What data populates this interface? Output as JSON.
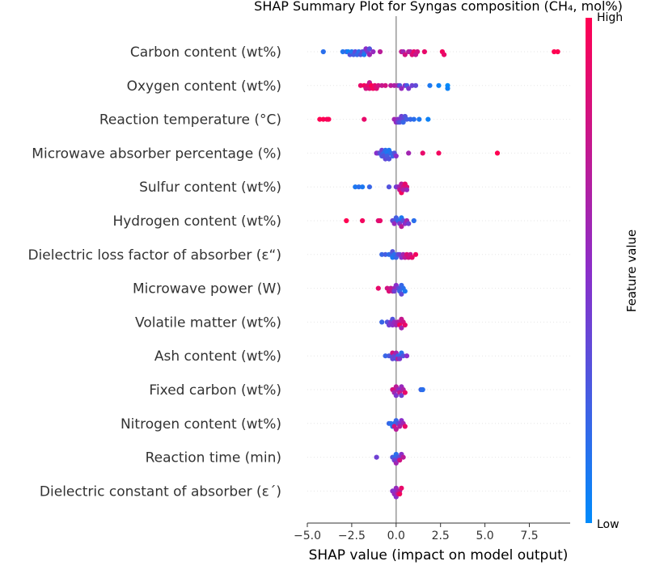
{
  "chart_data": {
    "type": "scatter",
    "title": "SHAP Summary Plot for Syngas composition (CH₄, mol%)",
    "xlabel": "SHAP value (impact on model output)",
    "xlim": [
      -5,
      9.8
    ],
    "xticks": [
      -5.0,
      -2.5,
      0.0,
      2.5,
      5.0,
      7.5
    ],
    "xtick_labels": [
      "−5.0",
      "−2.5",
      "0.0",
      "2.5",
      "5.0",
      "7.5"
    ],
    "colorbar": {
      "title": "Feature value",
      "high_label": "High",
      "low_label": "Low",
      "low_color": "#008bfb",
      "high_color": "#ff0052"
    },
    "features": [
      {
        "name": "Carbon content (wt%)",
        "points": [
          [
            -4.1,
            0.15
          ],
          [
            -3.0,
            0.12
          ],
          [
            -2.8,
            0.2
          ],
          [
            -2.6,
            0.3
          ],
          [
            -2.5,
            0.1
          ],
          [
            -2.4,
            0.25
          ],
          [
            -2.3,
            0.35
          ],
          [
            -2.2,
            0.2
          ],
          [
            -2.0,
            0.3
          ],
          [
            -1.9,
            0.4
          ],
          [
            -1.8,
            0.25
          ],
          [
            -1.7,
            0.5
          ],
          [
            -1.6,
            0.45
          ],
          [
            -1.5,
            0.6
          ],
          [
            -1.3,
            0.55
          ],
          [
            -0.9,
            0.7
          ],
          [
            -2.7,
            0.05
          ],
          [
            -2.1,
            0.15
          ],
          [
            -1.8,
            0.1
          ],
          [
            -1.5,
            0.3
          ],
          [
            0.3,
            0.75
          ],
          [
            0.5,
            0.8
          ],
          [
            0.7,
            0.7
          ],
          [
            0.9,
            0.85
          ],
          [
            1.0,
            0.9
          ],
          [
            1.1,
            0.75
          ],
          [
            1.2,
            0.8
          ],
          [
            1.6,
            0.9
          ],
          [
            2.6,
            0.95
          ],
          [
            2.7,
            0.9
          ],
          [
            8.9,
            1.0
          ],
          [
            9.1,
            1.0
          ],
          [
            0.4,
            0.6
          ],
          [
            0.8,
            0.65
          ]
        ]
      },
      {
        "name": "Oxygen content (wt%)",
        "points": [
          [
            -2.0,
            0.9
          ],
          [
            -1.8,
            0.95
          ],
          [
            -1.6,
            0.9
          ],
          [
            -1.5,
            0.85
          ],
          [
            -1.4,
            1.0
          ],
          [
            -1.3,
            0.95
          ],
          [
            -1.2,
            0.9
          ],
          [
            -1.1,
            0.85
          ],
          [
            -1.0,
            0.8
          ],
          [
            -0.8,
            0.75
          ],
          [
            -0.6,
            0.8
          ],
          [
            -0.3,
            0.7
          ],
          [
            -0.1,
            0.65
          ],
          [
            0.1,
            0.6
          ],
          [
            0.3,
            0.55
          ],
          [
            0.5,
            0.5
          ],
          [
            0.7,
            0.45
          ],
          [
            0.9,
            0.4
          ],
          [
            1.1,
            0.35
          ],
          [
            -1.5,
            0.75
          ],
          [
            -1.7,
            0.8
          ],
          [
            1.9,
            0.1
          ],
          [
            2.4,
            0.05
          ],
          [
            2.9,
            0.0
          ],
          [
            2.9,
            0.05
          ],
          [
            0.2,
            0.3
          ],
          [
            0.6,
            0.25
          ]
        ]
      },
      {
        "name": "Reaction temperature (°C)",
        "points": [
          [
            -4.3,
            1.0
          ],
          [
            -4.1,
            1.0
          ],
          [
            -3.9,
            0.95
          ],
          [
            -3.8,
            0.98
          ],
          [
            -1.8,
            0.9
          ],
          [
            -0.1,
            0.6
          ],
          [
            0.1,
            0.5
          ],
          [
            0.2,
            0.45
          ],
          [
            0.3,
            0.4
          ],
          [
            0.4,
            0.35
          ],
          [
            0.5,
            0.3
          ],
          [
            0.6,
            0.25
          ],
          [
            0.8,
            0.2
          ],
          [
            1.0,
            0.15
          ],
          [
            1.3,
            0.1
          ],
          [
            1.8,
            0.05
          ],
          [
            0.0,
            0.55
          ],
          [
            0.2,
            0.3
          ],
          [
            0.4,
            0.2
          ],
          [
            0.1,
            0.4
          ]
        ]
      },
      {
        "name": "Microwave absorber percentage (%)",
        "points": [
          [
            -1.1,
            0.5
          ],
          [
            -1.0,
            0.45
          ],
          [
            -0.9,
            0.3
          ],
          [
            -0.8,
            0.25
          ],
          [
            -0.7,
            0.2
          ],
          [
            -0.6,
            0.15
          ],
          [
            -0.5,
            0.1
          ],
          [
            -0.4,
            0.1
          ],
          [
            -0.3,
            0.15
          ],
          [
            -0.2,
            0.2
          ],
          [
            -0.1,
            0.3
          ],
          [
            -0.7,
            0.3
          ],
          [
            -0.5,
            0.25
          ],
          [
            -0.4,
            0.3
          ],
          [
            0.0,
            0.5
          ],
          [
            0.7,
            0.6
          ],
          [
            1.5,
            0.9
          ],
          [
            2.4,
            0.95
          ],
          [
            5.7,
            1.0
          ],
          [
            -0.6,
            0.35
          ],
          [
            -0.8,
            0.4
          ]
        ]
      },
      {
        "name": "Sulfur content (wt%)",
        "points": [
          [
            -2.3,
            0.1
          ],
          [
            -2.1,
            0.15
          ],
          [
            -1.9,
            0.1
          ],
          [
            -1.5,
            0.2
          ],
          [
            -0.4,
            0.3
          ],
          [
            0.1,
            0.5
          ],
          [
            0.2,
            0.6
          ],
          [
            0.3,
            0.7
          ],
          [
            0.4,
            0.8
          ],
          [
            0.5,
            0.9
          ],
          [
            0.6,
            0.85
          ],
          [
            0.3,
            0.95
          ],
          [
            0.2,
            0.75
          ],
          [
            0.0,
            0.4
          ],
          [
            0.4,
            0.65
          ],
          [
            0.6,
            0.55
          ]
        ]
      },
      {
        "name": "Hydrogen content (wt%)",
        "points": [
          [
            -2.8,
            1.0
          ],
          [
            -1.9,
            0.95
          ],
          [
            -1.0,
            0.85
          ],
          [
            -0.9,
            0.9
          ],
          [
            -0.2,
            0.4
          ],
          [
            -0.1,
            0.3
          ],
          [
            0.0,
            0.25
          ],
          [
            0.1,
            0.2
          ],
          [
            0.2,
            0.15
          ],
          [
            0.3,
            0.1
          ],
          [
            0.4,
            0.3
          ],
          [
            0.5,
            0.5
          ],
          [
            0.6,
            0.6
          ],
          [
            0.7,
            0.4
          ],
          [
            1.0,
            0.15
          ],
          [
            0.2,
            0.45
          ],
          [
            0.3,
            0.7
          ],
          [
            -0.1,
            0.55
          ]
        ]
      },
      {
        "name": "Dielectric loss factor of absorber (ε“)",
        "points": [
          [
            -0.8,
            0.2
          ],
          [
            -0.6,
            0.25
          ],
          [
            -0.4,
            0.15
          ],
          [
            -0.3,
            0.2
          ],
          [
            -0.2,
            0.1
          ],
          [
            -0.1,
            0.15
          ],
          [
            0.0,
            0.2
          ],
          [
            0.1,
            0.3
          ],
          [
            0.2,
            0.4
          ],
          [
            0.3,
            0.5
          ],
          [
            0.4,
            0.6
          ],
          [
            0.5,
            0.7
          ],
          [
            0.7,
            0.8
          ],
          [
            0.9,
            0.9
          ],
          [
            1.1,
            0.95
          ],
          [
            -0.2,
            0.3
          ],
          [
            0.6,
            0.85
          ],
          [
            0.8,
            0.75
          ]
        ]
      },
      {
        "name": "Microwave power (W)",
        "points": [
          [
            -1.0,
            0.9
          ],
          [
            -0.5,
            0.8
          ],
          [
            -0.4,
            0.85
          ],
          [
            -0.3,
            0.75
          ],
          [
            -0.2,
            0.7
          ],
          [
            -0.1,
            0.6
          ],
          [
            0.0,
            0.5
          ],
          [
            0.1,
            0.4
          ],
          [
            0.2,
            0.3
          ],
          [
            0.3,
            0.2
          ],
          [
            0.4,
            0.15
          ],
          [
            0.5,
            0.1
          ],
          [
            0.2,
            0.2
          ],
          [
            -0.1,
            0.4
          ],
          [
            0.3,
            0.35
          ]
        ]
      },
      {
        "name": "Volatile matter (wt%)",
        "points": [
          [
            -0.8,
            0.2
          ],
          [
            -0.5,
            0.3
          ],
          [
            -0.4,
            0.4
          ],
          [
            -0.3,
            0.45
          ],
          [
            -0.2,
            0.5
          ],
          [
            -0.1,
            0.55
          ],
          [
            0.0,
            0.6
          ],
          [
            0.1,
            0.65
          ],
          [
            0.2,
            0.7
          ],
          [
            0.3,
            0.75
          ],
          [
            0.4,
            0.8
          ],
          [
            0.5,
            0.9
          ],
          [
            0.2,
            0.95
          ],
          [
            -0.2,
            0.3
          ],
          [
            0.3,
            0.6
          ]
        ]
      },
      {
        "name": "Ash content (wt%)",
        "points": [
          [
            -0.6,
            0.2
          ],
          [
            -0.4,
            0.25
          ],
          [
            -0.3,
            0.3
          ],
          [
            -0.2,
            0.35
          ],
          [
            -0.1,
            0.4
          ],
          [
            0.0,
            0.3
          ],
          [
            0.1,
            0.25
          ],
          [
            0.2,
            0.2
          ],
          [
            0.3,
            0.15
          ],
          [
            0.4,
            0.3
          ],
          [
            0.6,
            0.5
          ],
          [
            0.0,
            0.6
          ],
          [
            0.1,
            0.7
          ],
          [
            -0.2,
            0.8
          ],
          [
            0.2,
            0.45
          ]
        ]
      },
      {
        "name": "Fixed carbon (wt%)",
        "points": [
          [
            -0.2,
            0.8
          ],
          [
            -0.1,
            0.85
          ],
          [
            0.0,
            0.7
          ],
          [
            0.1,
            0.6
          ],
          [
            0.2,
            0.5
          ],
          [
            0.3,
            0.55
          ],
          [
            0.4,
            0.65
          ],
          [
            0.5,
            0.9
          ],
          [
            0.0,
            0.45
          ],
          [
            -0.1,
            0.6
          ],
          [
            0.2,
            0.75
          ],
          [
            1.4,
            0.2
          ],
          [
            1.5,
            0.15
          ],
          [
            0.3,
            0.4
          ]
        ]
      },
      {
        "name": "Nitrogen content (wt%)",
        "points": [
          [
            -0.4,
            0.2
          ],
          [
            -0.3,
            0.15
          ],
          [
            -0.2,
            0.1
          ],
          [
            -0.1,
            0.15
          ],
          [
            0.0,
            0.2
          ],
          [
            0.1,
            0.3
          ],
          [
            0.2,
            0.4
          ],
          [
            0.3,
            0.5
          ],
          [
            0.4,
            0.6
          ],
          [
            0.5,
            0.9
          ],
          [
            0.0,
            0.7
          ],
          [
            -0.1,
            0.8
          ],
          [
            0.2,
            0.65
          ]
        ]
      },
      {
        "name": "Reaction time (min)",
        "points": [
          [
            -1.1,
            0.4
          ],
          [
            -0.2,
            0.3
          ],
          [
            -0.1,
            0.2
          ],
          [
            0.0,
            0.15
          ],
          [
            0.1,
            0.25
          ],
          [
            0.2,
            0.35
          ],
          [
            0.3,
            0.5
          ],
          [
            0.4,
            0.7
          ],
          [
            0.0,
            0.6
          ],
          [
            -0.1,
            0.4
          ],
          [
            0.1,
            0.45
          ],
          [
            0.2,
            0.8
          ]
        ]
      },
      {
        "name": "Dielectric constant of absorber (ε´)",
        "points": [
          [
            -0.2,
            0.5
          ],
          [
            -0.1,
            0.45
          ],
          [
            0.0,
            0.55
          ],
          [
            0.1,
            0.6
          ],
          [
            0.2,
            0.7
          ],
          [
            0.3,
            0.9
          ],
          [
            0.2,
            0.95
          ],
          [
            0.0,
            0.5
          ],
          [
            -0.1,
            0.55
          ],
          [
            0.1,
            0.75
          ]
        ]
      }
    ]
  }
}
